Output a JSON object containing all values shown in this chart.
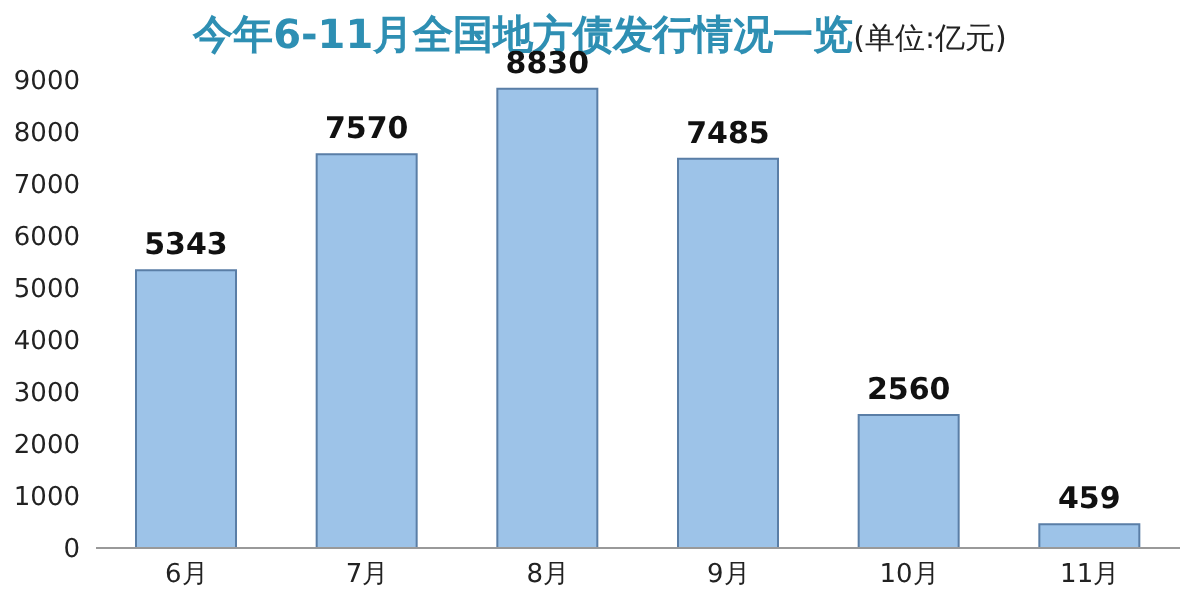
{
  "chart_data": {
    "type": "bar",
    "title": "今年6-11月全国地方债发行情况一览",
    "subtitle": "(单位:亿元)",
    "categories": [
      "6月",
      "7月",
      "8月",
      "9月",
      "10月",
      "11月"
    ],
    "values": [
      5343,
      7570,
      8830,
      7485,
      2560,
      459
    ],
    "color": "#9dc3e8",
    "ylim": [
      0,
      9000
    ],
    "yticks": [
      0,
      1000,
      2000,
      3000,
      4000,
      5000,
      6000,
      7000,
      8000,
      9000
    ],
    "data_labels": true,
    "grid": false,
    "legend": false
  }
}
